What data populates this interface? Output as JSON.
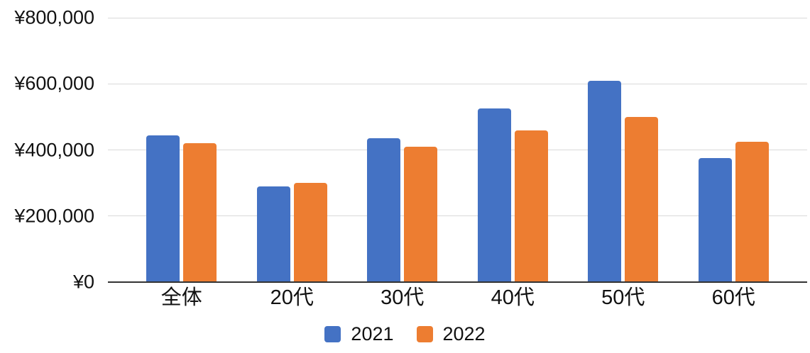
{
  "chart_data": {
    "type": "bar",
    "title": "",
    "xlabel": "",
    "ylabel": "",
    "categories": [
      "全体",
      "20代",
      "30代",
      "40代",
      "50代",
      "60代"
    ],
    "series": [
      {
        "name": "2021",
        "color": "#4472C4",
        "values": [
          445000,
          290000,
          435000,
          525000,
          610000,
          375000
        ]
      },
      {
        "name": "2022",
        "color": "#ED7D31",
        "values": [
          420000,
          300000,
          410000,
          460000,
          500000,
          425000
        ]
      }
    ],
    "ylim": [
      0,
      800000
    ],
    "ytick_step": 200000,
    "ytick_labels": [
      "¥0",
      "¥200,000",
      "¥400,000",
      "¥600,000",
      "¥800,000"
    ],
    "grid": "horizontal-only",
    "legend_position": "bottom-center",
    "colors": {
      "gridline": "#d9d9d9",
      "axis_line": "#333333",
      "text": "#111111",
      "background": "#ffffff"
    }
  }
}
